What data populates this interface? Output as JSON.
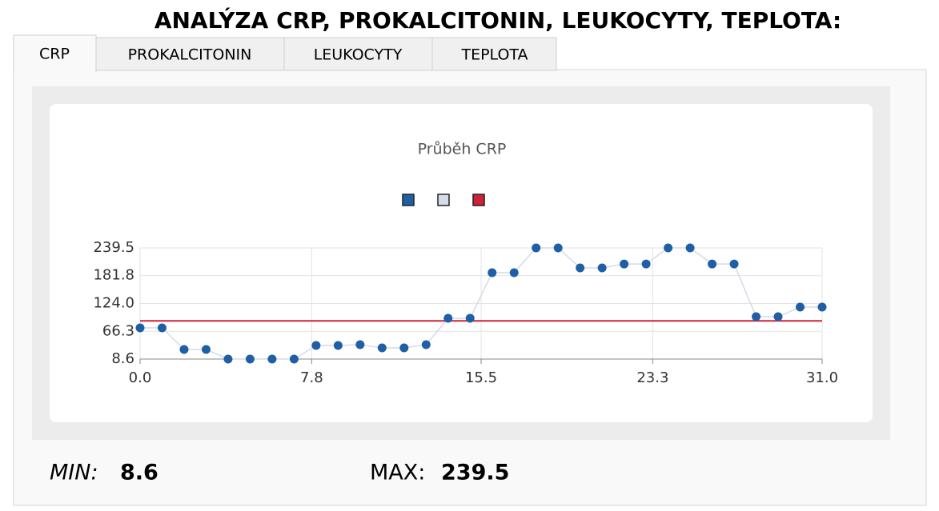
{
  "header": {
    "title": "ANALÝZA CRP, PROKALCITONIN, LEUKOCYTY, TEPLOTA:"
  },
  "tabs": [
    "CRP",
    "PROKALCITONIN",
    "LEUKOCYTY",
    "TEPLOTA"
  ],
  "chart_data": {
    "type": "line",
    "title": "Průběh CRP",
    "x": [
      0,
      1,
      2,
      3,
      4,
      5,
      6,
      7,
      8,
      9,
      10,
      11,
      12,
      13,
      14,
      15,
      16,
      17,
      18,
      19,
      20,
      21,
      22,
      23,
      24,
      25,
      26,
      27,
      28,
      29,
      30,
      31
    ],
    "series": [
      {
        "color": "#1f5fa6",
        "values": [
          73.4,
          73.4,
          28.5,
          28.5,
          8.6,
          8.6,
          8.6,
          8.6,
          36.8,
          36.8,
          38.5,
          31.9,
          31.9,
          38.5,
          93.3,
          93.3,
          188,
          188,
          239.5,
          239.5,
          198,
          198,
          206,
          206,
          239.5,
          239.5,
          206,
          206,
          96.6,
          96.6,
          116.6,
          116.6
        ]
      },
      {
        "color": "#d3dce8",
        "values": [
          73.4,
          73.4,
          28.5,
          28.5,
          8.6,
          8.6,
          8.6,
          8.6,
          36.8,
          36.8,
          38.5,
          31.9,
          31.9,
          38.5,
          93.3,
          93.3,
          188,
          188,
          239.5,
          239.5,
          198,
          198,
          206,
          206,
          239.5,
          239.5,
          206,
          206,
          96.6,
          96.6,
          116.6,
          116.6
        ]
      },
      {
        "color": "#d0213a",
        "x": [
          0,
          31
        ],
        "values": [
          88,
          88
        ]
      }
    ],
    "xlim": [
      0,
      31
    ],
    "xticks": [
      {
        "value": 0,
        "label": "0.0"
      },
      7.8,
      15.5,
      23.3,
      {
        "value": 31,
        "label": "31.0"
      }
    ],
    "ylim": [
      8.6,
      239.5
    ],
    "yticks": [
      8.6,
      66.3,
      {
        "value": 124,
        "label": "124.0"
      },
      181.8,
      239.5
    ],
    "grid": true
  },
  "stats": {
    "min_label": "MIN:",
    "min_value": "8.6",
    "max_label": "MAX:",
    "max_value": "239.5"
  }
}
